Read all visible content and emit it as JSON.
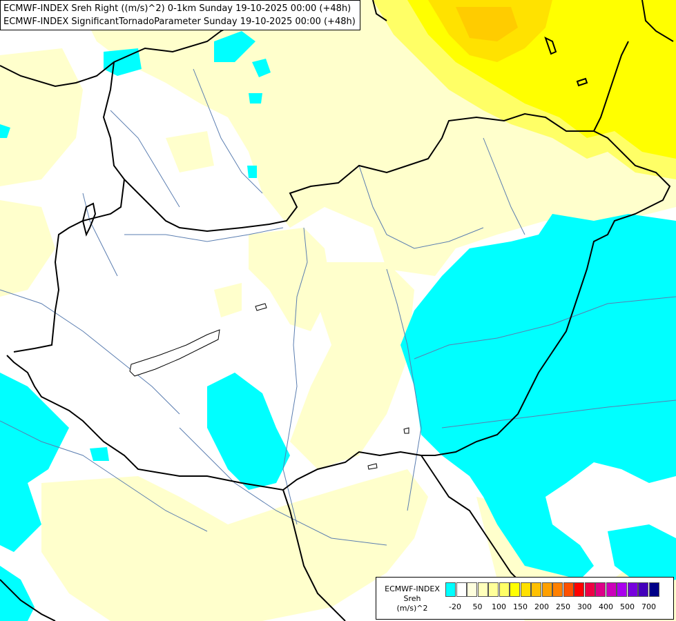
{
  "header": {
    "line1": "ECMWF-INDEX Sreh Right ((m/s)^2) 0-1km Sunday 19-10-2025 00:00 (+48h)",
    "line2": "ECMWF-INDEX SignificantTornadoParameter Sunday 19-10-2025 00:00 (+48h)"
  },
  "legend": {
    "line1": "ECMWF-INDEX",
    "line2": "Sreh",
    "line3": "(m/s)^2",
    "colors": [
      "#00ffff",
      "#ffffff",
      "#ffffdd",
      "#ffffbb",
      "#ffff99",
      "#ffff66",
      "#ffff00",
      "#ffe000",
      "#ffc000",
      "#ffa000",
      "#ff8000",
      "#ff5000",
      "#ff0000",
      "#ee0044",
      "#dd0088",
      "#cc00bb",
      "#aa00ee",
      "#7700dd",
      "#4400bb",
      "#000088"
    ],
    "ticks": [
      "-20",
      "50",
      "100",
      "150",
      "200",
      "250",
      "300",
      "400",
      "500",
      "700"
    ]
  },
  "map_colors": {
    "cyan": "#00ffff",
    "pale_yellow": "#ffffbb",
    "yellow": "#ffff00",
    "gold": "#ffdd00",
    "border": "#000000",
    "river": "#5a7db0"
  }
}
